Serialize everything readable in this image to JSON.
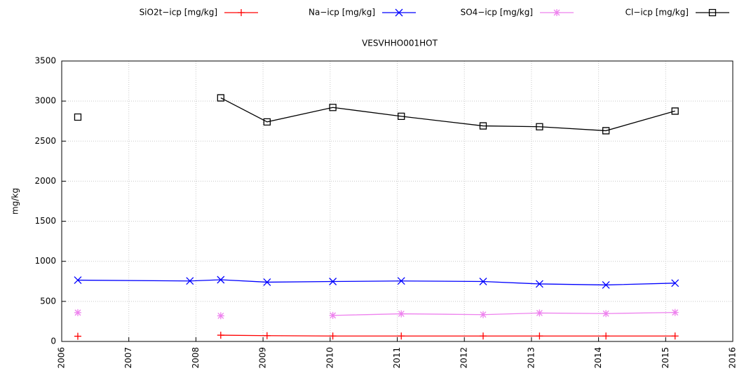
{
  "chart_data": {
    "type": "line",
    "title": "VESVHHO001HOT",
    "y_label": "mg/kg",
    "x": [
      2006.24,
      2007.91,
      2008.37,
      2009.06,
      2010.04,
      2011.06,
      2012.28,
      2013.12,
      2014.11,
      2015.14
    ],
    "series": [
      {
        "name": "SiO2t−icp [mg/kg]",
        "color": "#ff0000",
        "marker": "plus",
        "values": [
          65,
          null,
          78,
          72,
          68,
          68,
          68,
          68,
          68,
          68
        ]
      },
      {
        "name": "Na−icp [mg/kg]",
        "color": "#0000ff",
        "marker": "cross",
        "values": [
          765,
          755,
          770,
          740,
          748,
          755,
          748,
          718,
          705,
          728
        ]
      },
      {
        "name": "SO4−icp [mg/kg]",
        "color": "#ee82ee",
        "marker": "star",
        "values": [
          360,
          null,
          320,
          null,
          325,
          345,
          335,
          355,
          348,
          362
        ]
      },
      {
        "name": "Cl−icp [mg/kg]",
        "color": "#000000",
        "marker": "square",
        "values": [
          2800,
          null,
          3040,
          2740,
          2920,
          2810,
          2690,
          2680,
          2630,
          2875
        ]
      }
    ],
    "xlim": [
      2006,
      2016
    ],
    "xticks": [
      2006,
      2007,
      2008,
      2009,
      2010,
      2011,
      2012,
      2013,
      2014,
      2015,
      2016
    ],
    "ylim": [
      0,
      3500
    ],
    "yticks": [
      0,
      500,
      1000,
      1500,
      2000,
      2500,
      3000,
      3500
    ],
    "grid": true,
    "legend": "top"
  }
}
